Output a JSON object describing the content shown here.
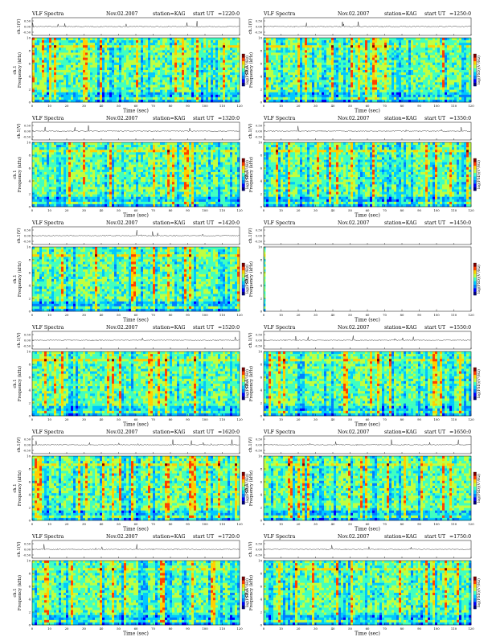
{
  "header": {
    "title": "VLF Spectra",
    "date": "Nov.02.2007",
    "station": "station=KAG",
    "start": "start UT",
    "times_left": [
      "=1220:0",
      "=1320:0",
      "=1420:0",
      "=1520:0",
      "=1620:0",
      "=1720:0"
    ],
    "times_right": [
      "=1250:0",
      "=1350:0",
      "=1450:0",
      "=1550:0",
      "=1650:0",
      "=1750:0"
    ]
  },
  "chart_data": {
    "type": "heatmap",
    "rows": 6,
    "cols": 2,
    "xlabel": "Time (sec)",
    "ylabel_top": "ch.1(V)",
    "ylabel_bottom": "Frequency (kHz)",
    "yprefix": "ch.1",
    "colorbar_label": "log(PSD)(V²/Hz)",
    "xlim": [
      0,
      120
    ],
    "x_ticks": [
      "0",
      "10",
      "20",
      "30",
      "40",
      "50",
      "60",
      "70",
      "80",
      "90",
      "100",
      "110",
      "120"
    ],
    "y_ticks": [
      "0",
      "2",
      "4",
      "6",
      "8",
      "10"
    ],
    "amp_ticks": [
      "-0.50",
      "0.00",
      "0.50"
    ],
    "ylim_khz": [
      0,
      10
    ],
    "truncated_panel": {
      "row": 2,
      "col": 1,
      "data_end_sec": 1
    },
    "colormap": [
      "#00007f",
      "#0000ff",
      "#007fff",
      "#00c8ff",
      "#40ffbf",
      "#bfff40",
      "#ffd000",
      "#ff4000",
      "#7f0000"
    ]
  }
}
